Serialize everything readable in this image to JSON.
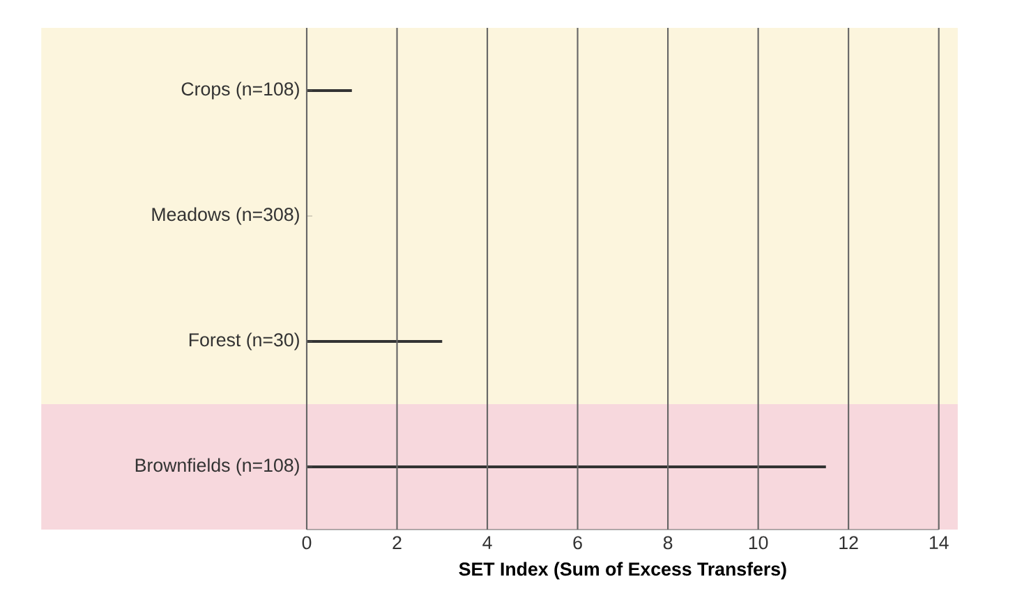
{
  "chart_data": {
    "type": "bar",
    "orientation": "horizontal",
    "xlabel": "SET Index (Sum of Excess Transfers)",
    "categories": [
      "Crops (n=108)",
      "Meadows (n=308)",
      "Forest (n=30)",
      "Brownfields (n=108)"
    ],
    "values": [
      1.0,
      0,
      3.0,
      11.5
    ],
    "color": "#333333",
    "xlim": [
      0,
      14
    ],
    "xticks": [
      0,
      2,
      4,
      6,
      8,
      10,
      12,
      14
    ],
    "grid": "x",
    "bands": [
      {
        "axis": "y",
        "from": "Crops (n=108)",
        "to": "Forest (n=30)",
        "color": "#fcf5dd"
      },
      {
        "axis": "y",
        "from": "Brownfields (n=108)",
        "to": "Brownfields (n=108)",
        "color": "#f7d8dd"
      }
    ]
  }
}
